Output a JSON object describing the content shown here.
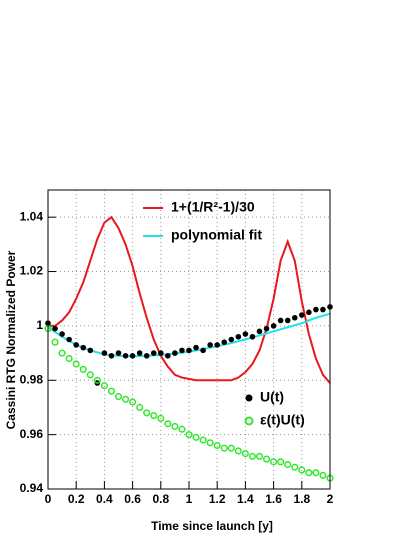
{
  "chart_data": {
    "type": "line",
    "x_label": "Time since launch [y]",
    "y_label": "Cassini RTG Normalized Power",
    "xlim": [
      0,
      2
    ],
    "ylim": [
      0.94,
      1.05
    ],
    "xticks": [
      0,
      0.2,
      0.4,
      0.6,
      0.8,
      1,
      1.2,
      1.4,
      1.6,
      1.8,
      2
    ],
    "yticks": [
      0.94,
      0.96,
      0.98,
      1,
      1.02,
      1.04
    ],
    "grid": true,
    "series": [
      {
        "name": "1+(1/R²-1)/30",
        "color": "#e8181c",
        "style": "line",
        "legend": "top",
        "x": [
          0,
          0.05,
          0.1,
          0.15,
          0.2,
          0.25,
          0.3,
          0.35,
          0.4,
          0.45,
          0.5,
          0.55,
          0.6,
          0.65,
          0.7,
          0.75,
          0.8,
          0.85,
          0.9,
          0.95,
          1,
          1.05,
          1.1,
          1.15,
          1.2,
          1.25,
          1.3,
          1.35,
          1.4,
          1.45,
          1.5,
          1.55,
          1.6,
          1.65,
          1.7,
          1.75,
          1.8,
          1.85,
          1.9,
          1.95,
          2
        ],
        "values": [
          1.0,
          1.0,
          1.002,
          1.005,
          1.01,
          1.016,
          1.024,
          1.032,
          1.038,
          1.04,
          1.036,
          1.03,
          1.022,
          1.012,
          1.003,
          0.995,
          0.989,
          0.985,
          0.982,
          0.981,
          0.9805,
          0.98,
          0.98,
          0.98,
          0.98,
          0.98,
          0.98,
          0.981,
          0.983,
          0.986,
          0.991,
          0.999,
          1.01,
          1.024,
          1.031,
          1.024,
          1.009,
          0.997,
          0.988,
          0.982,
          0.979
        ]
      },
      {
        "name": "polynomial fit",
        "color": "#22e3e8",
        "style": "line",
        "legend": "top",
        "x": [
          0,
          0.1,
          0.2,
          0.3,
          0.4,
          0.5,
          0.6,
          0.7,
          0.8,
          0.9,
          1,
          1.1,
          1.2,
          1.3,
          1.4,
          1.5,
          1.6,
          1.7,
          1.8,
          1.9,
          2
        ],
        "values": [
          0.9995,
          0.996,
          0.993,
          0.991,
          0.9895,
          0.989,
          0.9888,
          0.989,
          0.9893,
          0.9898,
          0.9905,
          0.9915,
          0.9925,
          0.9937,
          0.995,
          0.9965,
          0.998,
          0.9995,
          1.001,
          1.003,
          1.0045
        ]
      },
      {
        "name": "U(t)",
        "color": "#000000",
        "style": "dots",
        "legend": "bottom-right",
        "x": [
          0,
          0.05,
          0.1,
          0.15,
          0.2,
          0.25,
          0.3,
          0.35,
          0.4,
          0.45,
          0.5,
          0.55,
          0.6,
          0.65,
          0.7,
          0.75,
          0.8,
          0.85,
          0.9,
          0.95,
          1,
          1.05,
          1.1,
          1.15,
          1.2,
          1.25,
          1.3,
          1.35,
          1.4,
          1.45,
          1.5,
          1.55,
          1.6,
          1.65,
          1.7,
          1.75,
          1.8,
          1.85,
          1.9,
          1.95,
          2
        ],
        "values": [
          1.001,
          0.999,
          0.997,
          0.995,
          0.993,
          0.992,
          0.991,
          0.979,
          0.99,
          0.989,
          0.99,
          0.989,
          0.989,
          0.99,
          0.989,
          0.99,
          0.99,
          0.989,
          0.99,
          0.991,
          0.991,
          0.992,
          0.991,
          0.993,
          0.993,
          0.994,
          0.995,
          0.996,
          0.997,
          0.996,
          0.998,
          0.999,
          1.0,
          1.002,
          1.002,
          1.003,
          1.004,
          1.005,
          1.006,
          1.006,
          1.007
        ]
      },
      {
        "name": "ε(t)U(t)",
        "color": "#2ee82a",
        "style": "circles",
        "legend": "bottom-right",
        "x": [
          0,
          0.05,
          0.1,
          0.15,
          0.2,
          0.25,
          0.3,
          0.35,
          0.4,
          0.45,
          0.5,
          0.55,
          0.6,
          0.65,
          0.7,
          0.75,
          0.8,
          0.85,
          0.9,
          0.95,
          1,
          1.05,
          1.1,
          1.15,
          1.2,
          1.25,
          1.3,
          1.35,
          1.4,
          1.45,
          1.5,
          1.55,
          1.6,
          1.65,
          1.7,
          1.75,
          1.8,
          1.85,
          1.9,
          1.95,
          2
        ],
        "values": [
          0.999,
          0.994,
          0.99,
          0.988,
          0.986,
          0.984,
          0.982,
          0.98,
          0.978,
          0.976,
          0.974,
          0.973,
          0.972,
          0.97,
          0.968,
          0.967,
          0.966,
          0.964,
          0.963,
          0.962,
          0.96,
          0.959,
          0.958,
          0.957,
          0.956,
          0.955,
          0.955,
          0.954,
          0.953,
          0.952,
          0.952,
          0.951,
          0.95,
          0.95,
          0.949,
          0.948,
          0.947,
          0.946,
          0.946,
          0.945,
          0.944
        ]
      }
    ]
  }
}
